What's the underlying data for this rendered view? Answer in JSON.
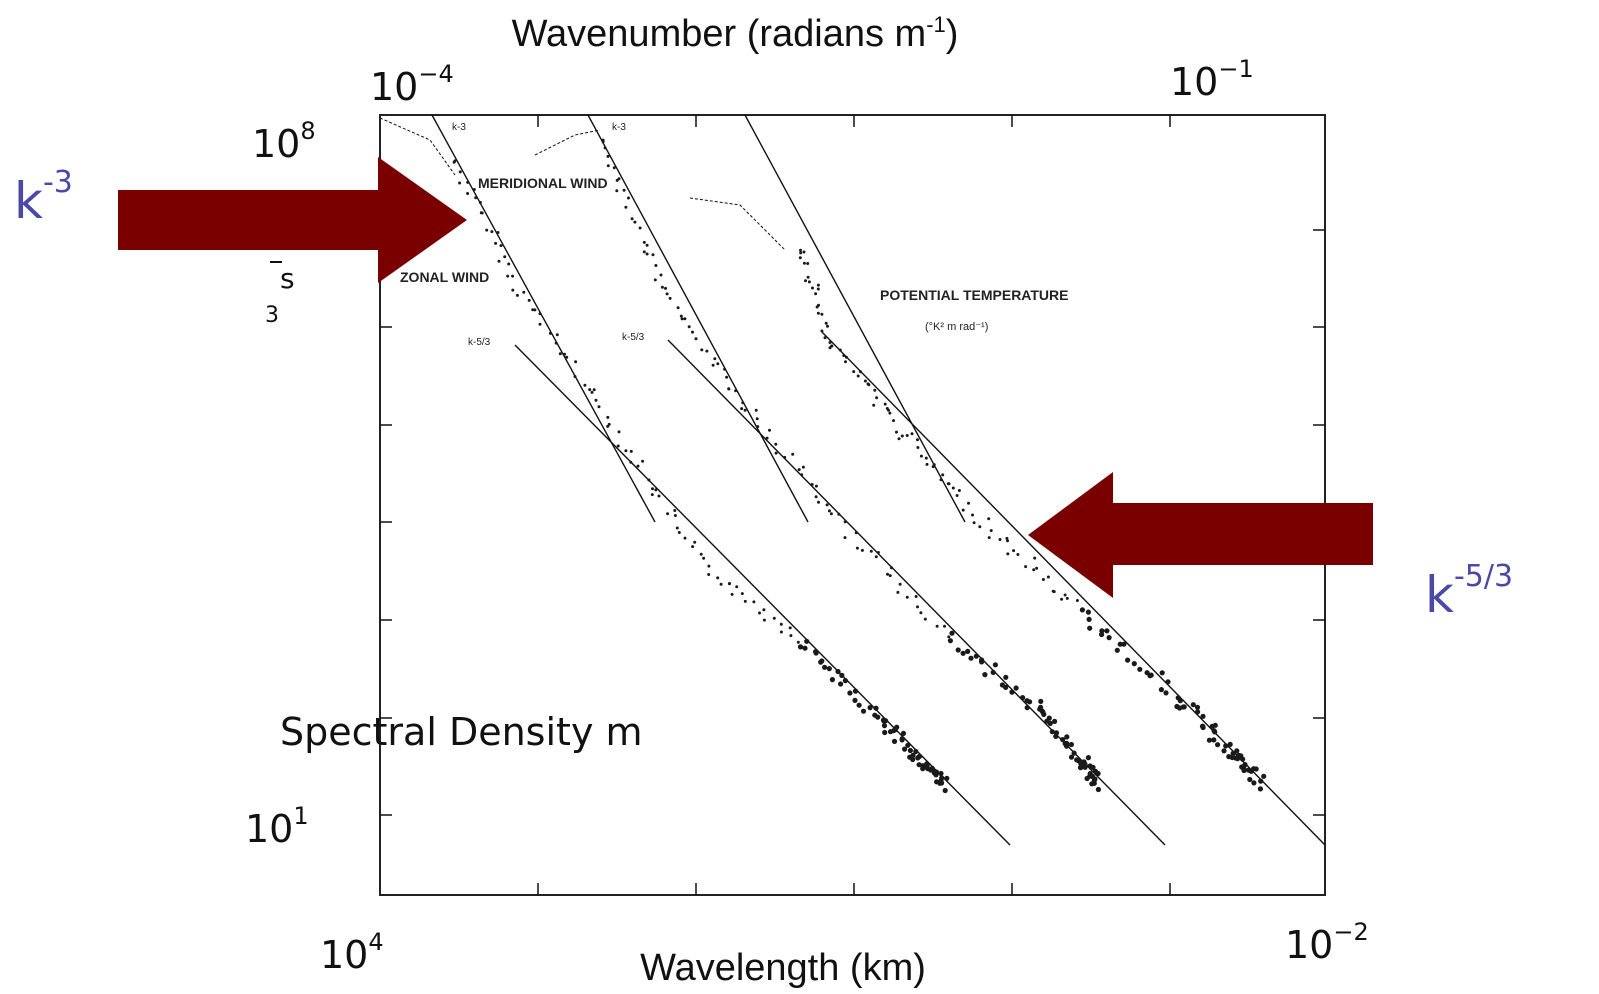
{
  "chart_data": {
    "type": "scatter",
    "top_axis_title": "Wavenumber (radians m",
    "top_axis_title_sup": "-1",
    "top_axis_title_close": ")",
    "xlabel": "Wavelength (km)",
    "ylabel": "Spectral Density m",
    "y_label_fragments": {
      "s": "s",
      "three": "3"
    },
    "top_ticks": [
      {
        "base": "10",
        "exp": "−4"
      },
      {
        "base": "10",
        "exp": "−1"
      }
    ],
    "bottom_ticks": [
      {
        "base": "10",
        "exp": "4"
      },
      {
        "base": "10",
        "exp": "−2"
      }
    ],
    "y_ticks": [
      {
        "base": "10",
        "exp": "8"
      },
      {
        "base": "10",
        "exp": "1"
      }
    ],
    "xlim_wavelength_km": [
      10000,
      0.01
    ],
    "xlim_wavenumber": [
      0.0001,
      1
    ],
    "ylim": [
      1,
      100000000
    ],
    "x_scale": "log",
    "y_scale": "log",
    "grid": false,
    "series": [
      {
        "name": "ZONAL WIND",
        "sub": "",
        "slope3_label": "k-3",
        "slope53_label": "k-5/3",
        "offset": 0
      },
      {
        "name": "MERIDIONAL WIND",
        "sub": "",
        "slope3_label": "k-3",
        "slope53_label": "k-5/3",
        "offset": 1
      },
      {
        "name": "POTENTIAL TEMPERATURE",
        "sub": "(°K² m rad⁻¹)",
        "slope3_label": "",
        "slope53_label": "",
        "offset": 2
      }
    ],
    "annotations": [
      {
        "text": "k",
        "sup": "-3",
        "points_to": "k-3 slope"
      },
      {
        "text": "k",
        "sup": "-5/3",
        "points_to": "k-5/3 slope"
      }
    ],
    "colors": {
      "arrow": "#7a0000",
      "annotation": "#4b48a8",
      "ink": "#111111"
    }
  }
}
